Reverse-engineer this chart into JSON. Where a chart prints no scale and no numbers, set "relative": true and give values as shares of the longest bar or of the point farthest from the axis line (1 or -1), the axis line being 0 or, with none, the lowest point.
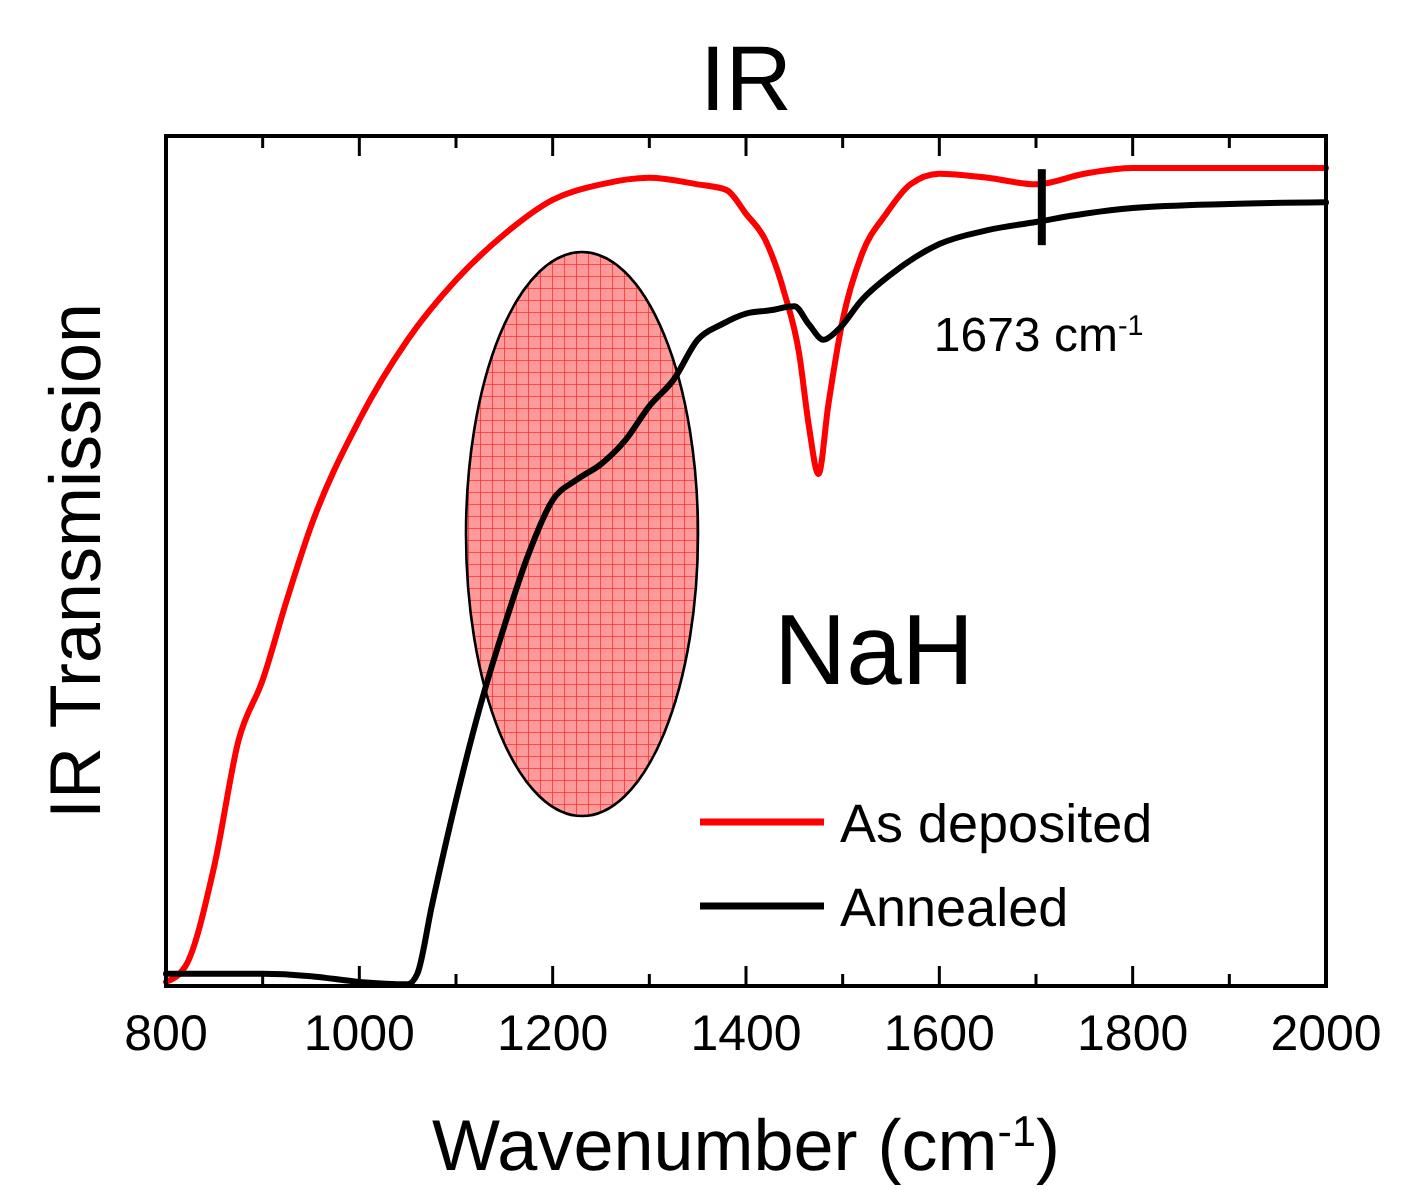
{
  "chart_data": {
    "type": "line",
    "title": "IR",
    "xlabel": "Wavenumber (cm$^{-1}$)",
    "ylabel": "IR Transmission",
    "relative": true,
    "xlim": [
      800,
      2000
    ],
    "xticks": [
      800,
      {
        "value": 900,
        "label": null
      },
      1000,
      {
        "value": 1100,
        "label": null
      },
      1200,
      {
        "value": 1300,
        "label": null
      },
      1400,
      {
        "value": 1500,
        "label": null
      },
      1600,
      {
        "value": 1700,
        "label": null
      },
      1800,
      {
        "value": 1900,
        "label": null
      },
      2000
    ],
    "legend": "bottom right",
    "grid": false,
    "line_style": "solid",
    "annotations": [
      "NaH",
      {
        "text": "1673 cm$^{-1}$",
        "x": 1706,
        "y": 0.935
      }
    ],
    "series": [
      {
        "name": "As deposited",
        "color": "#ff0000",
        "x": [
          800,
          820,
          850,
          875,
          900,
          925,
          950,
          1000,
          1050,
          1100,
          1150,
          1200,
          1250,
          1300,
          1350,
          1380,
          1400,
          1420,
          1440,
          1455,
          1465,
          1475,
          1485,
          1500,
          1520,
          1545,
          1570,
          1600,
          1650,
          1700,
          1750,
          1800,
          1900,
          2000
        ],
        "values": [
          0.005,
          0.024,
          0.147,
          0.3,
          0.374,
          0.472,
          0.562,
          0.692,
          0.79,
          0.863,
          0.919,
          0.961,
          0.98,
          0.988,
          0.98,
          0.973,
          0.944,
          0.912,
          0.846,
          0.773,
          0.685,
          0.626,
          0.709,
          0.814,
          0.895,
          0.944,
          0.98,
          0.993,
          0.988,
          0.98,
          0.993,
          1,
          1,
          1
        ]
      },
      {
        "name": "Annealed",
        "color": "#000000",
        "x": [
          800,
          900,
          950,
          1000,
          1050,
          1060,
          1075,
          1100,
          1125,
          1150,
          1175,
          1200,
          1225,
          1250,
          1275,
          1300,
          1325,
          1350,
          1375,
          1400,
          1425,
          1450,
          1465,
          1480,
          1495,
          1520,
          1550,
          1600,
          1650,
          1700,
          1750,
          1800,
          1900,
          2000
        ],
        "values": [
          0.015,
          0.015,
          0.012,
          0.005,
          0.002,
          0.015,
          0.098,
          0.227,
          0.342,
          0.44,
          0.528,
          0.594,
          0.619,
          0.638,
          0.667,
          0.709,
          0.741,
          0.79,
          0.809,
          0.822,
          0.826,
          0.831,
          0.809,
          0.79,
          0.802,
          0.839,
          0.87,
          0.907,
          0.924,
          0.934,
          0.944,
          0.951,
          0.956,
          0.958
        ]
      }
    ]
  }
}
